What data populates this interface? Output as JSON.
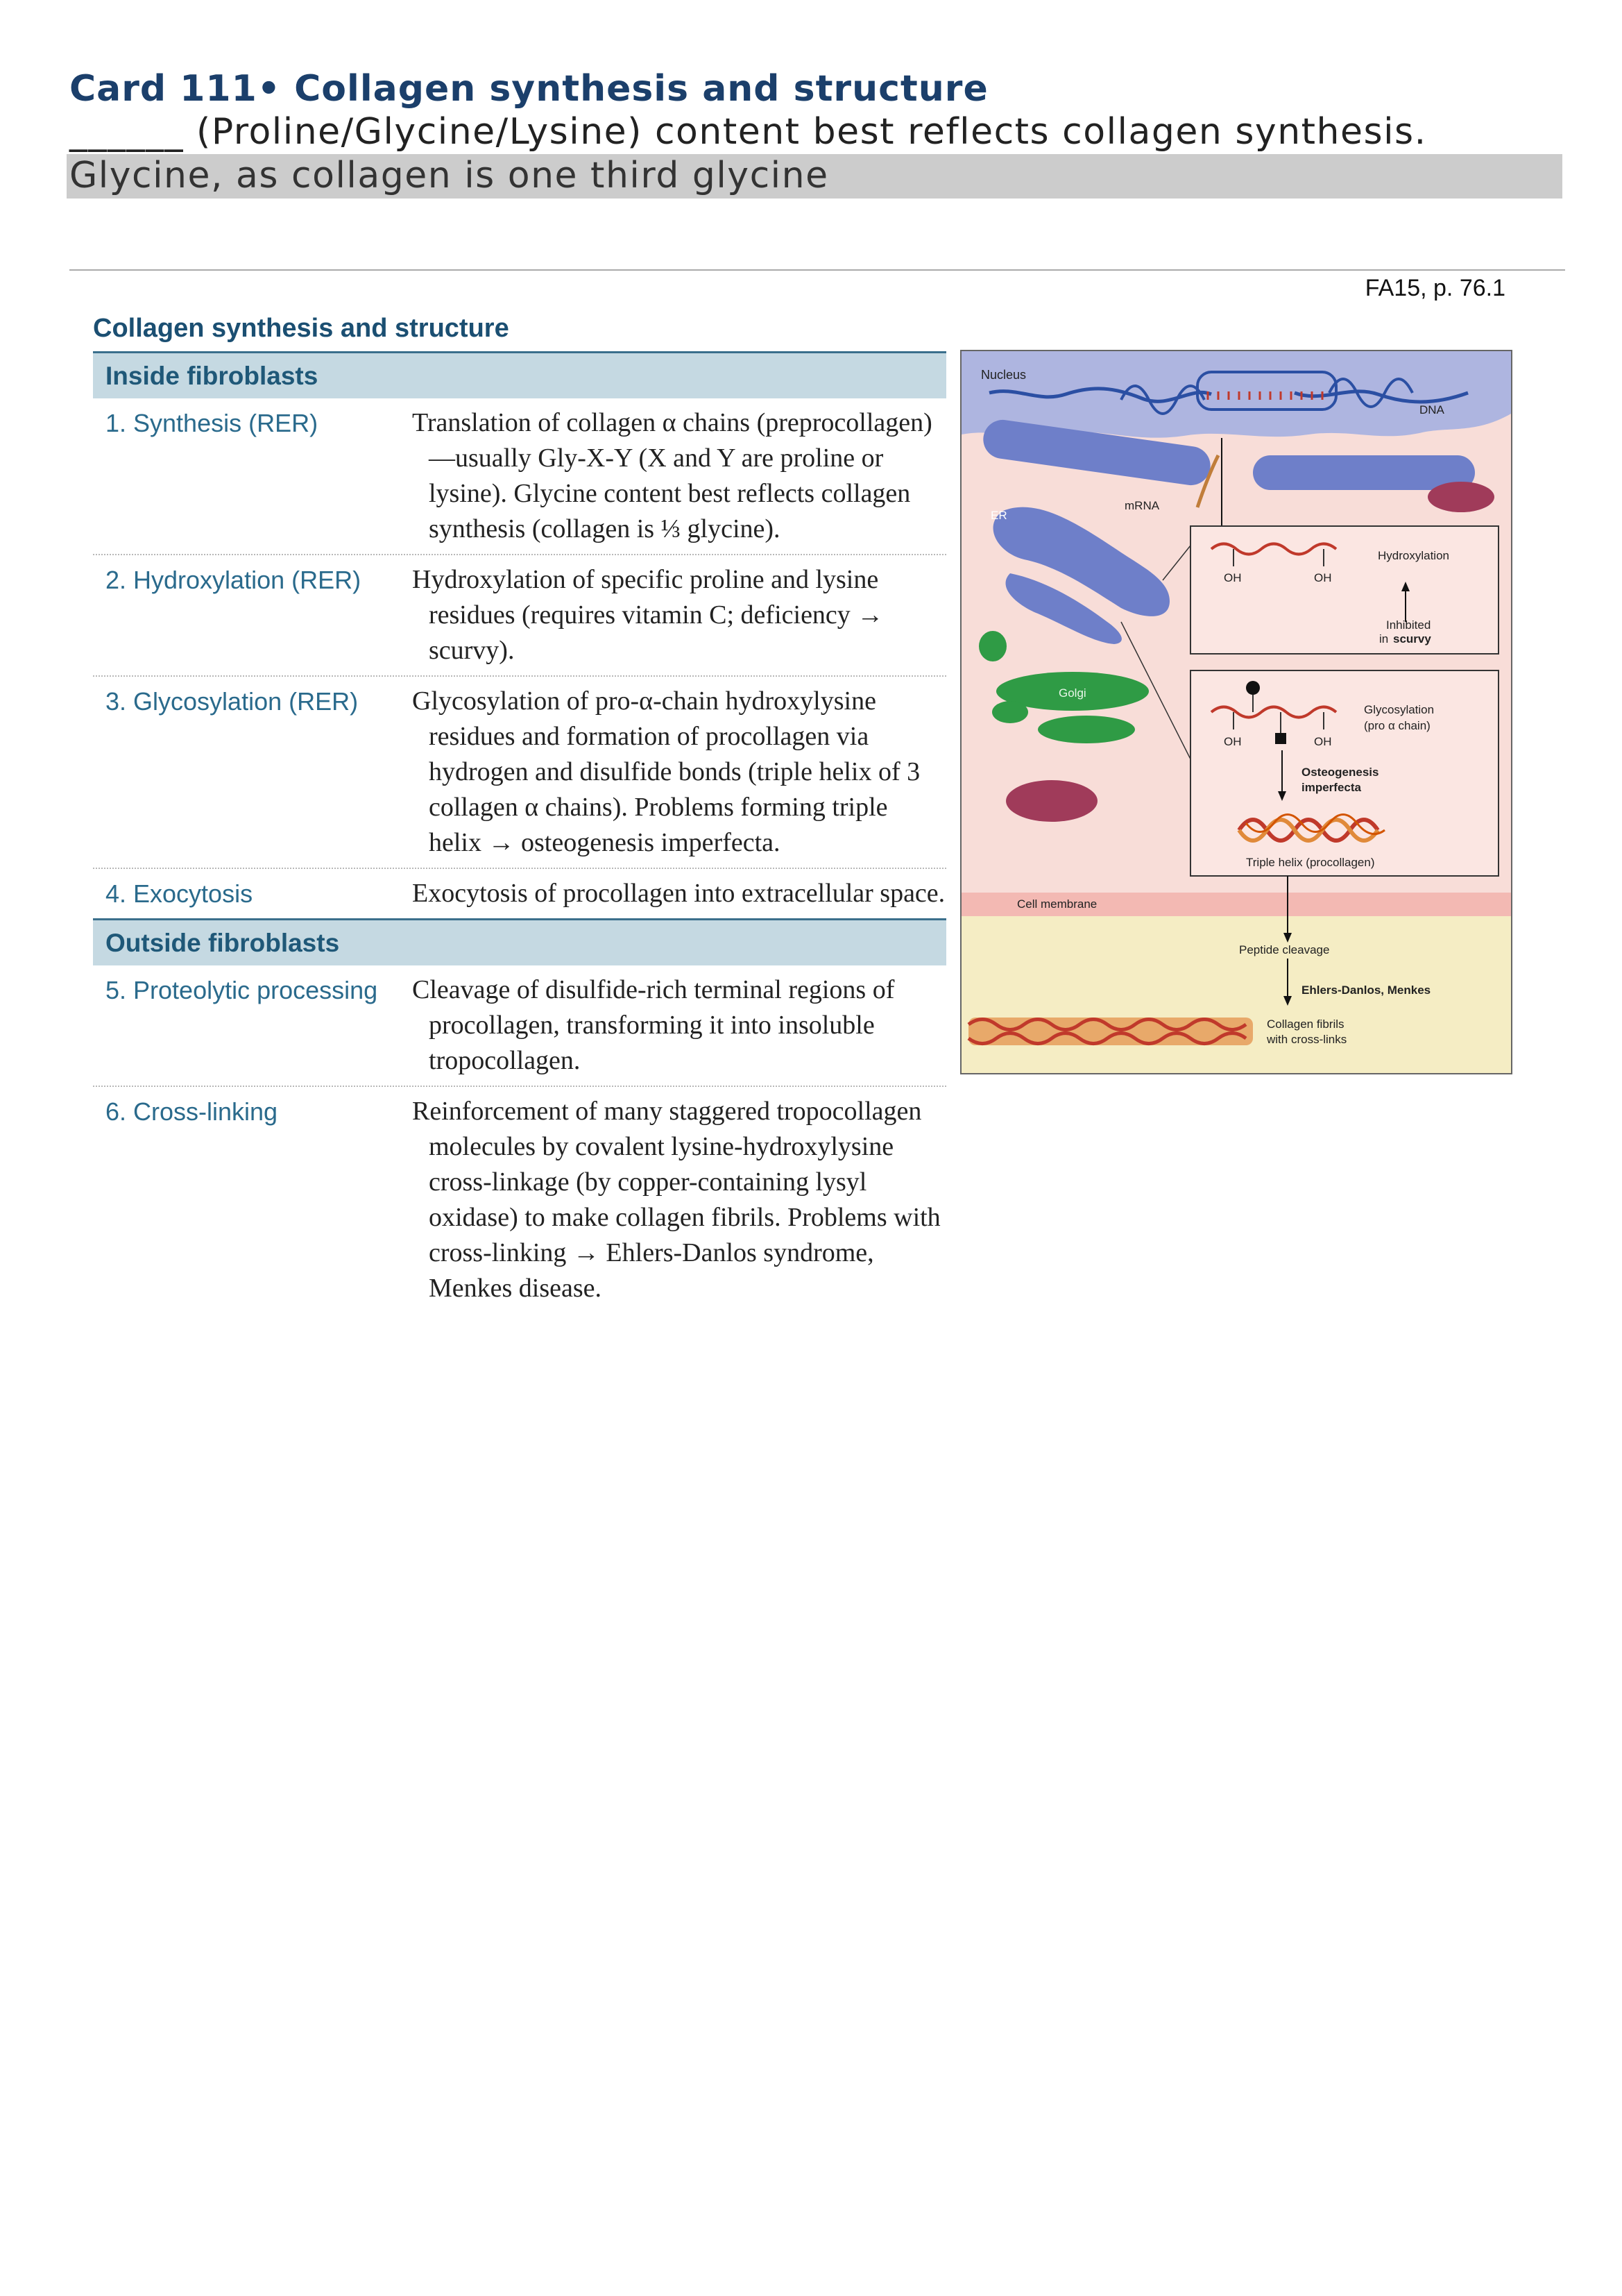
{
  "card": {
    "title": "Card 111• Collagen synthesis and structure",
    "question": "______ (Proline/Glycine/Lysine) content best reflects collagen synthesis.",
    "answer": "Glycine, as collagen is one third glycine",
    "source": "FA15, p. 76.1"
  },
  "table": {
    "title": "Collagen synthesis and structure",
    "sections": [
      {
        "heading": "Inside fibroblasts",
        "rows": [
          {
            "step": "1. Synthesis (RER)",
            "desc": "Translation of collagen α chains (preprocollagen)—usually Gly-X-Y (X and Y are proline or lysine). Glycine content best reflects collagen synthesis (collagen is ⅓ glycine)."
          },
          {
            "step": "2. Hydroxylation (RER)",
            "desc": "Hydroxylation of specific proline and lysine residues (requires vitamin C; deficiency → scurvy)."
          },
          {
            "step": "3. Glycosylation (RER)",
            "desc": "Glycosylation of pro-α-chain hydroxylysine residues and formation of procollagen via hydrogen and disulfide bonds (triple helix of 3 collagen α chains). Problems forming triple helix → osteogenesis imperfecta."
          },
          {
            "step": "4. Exocytosis",
            "desc": "Exocytosis of procollagen into extracellular space."
          }
        ]
      },
      {
        "heading": "Outside fibroblasts",
        "rows": [
          {
            "step": "5. Proteolytic processing",
            "desc": "Cleavage of disulfide-rich terminal regions of procollagen, transforming it into insoluble tropocollagen."
          },
          {
            "step": "6. Cross-linking",
            "desc": "Reinforcement of many staggered tropocollagen molecules by covalent lysine-hydroxylysine cross-linkage (by copper-containing lysyl oxidase) to make collagen fibrils. Problems with cross-linking → Ehlers-Danlos syndrome, Menkes disease."
          }
        ]
      }
    ]
  },
  "figure": {
    "nucleus": "Nucleus",
    "dna": "DNA",
    "mrna": "mRNA",
    "er": "ER",
    "golgi": "Golgi",
    "oh": "OH",
    "hydroxylation": "Hydroxylation",
    "inhibited_1": "Inhibited",
    "inhibited_2": "in",
    "inhibited_3": "scurvy",
    "glycosylation_1": "Glycosylation",
    "glycosylation_2": "(pro α chain)",
    "oi_1": "Osteogenesis",
    "oi_2": "imperfecta",
    "triple_helix": "Triple helix (procollagen)",
    "cell_membrane": "Cell membrane",
    "peptide_cleavage": "Peptide cleavage",
    "ehlers": "Ehlers-Danlos, Menkes",
    "fibrils_1": "Collagen fibrils",
    "fibrils_2": "with cross-links",
    "colors": {
      "nucleus": "#aeb5e0",
      "cytoplasm": "#f8ddd8",
      "extracellular": "#f5edc4",
      "membrane": "#f3b9b3",
      "er": "#6e7fc9",
      "golgi": "#2f9b45",
      "mito": "#a03b5a",
      "strand": "#c0392b"
    }
  }
}
